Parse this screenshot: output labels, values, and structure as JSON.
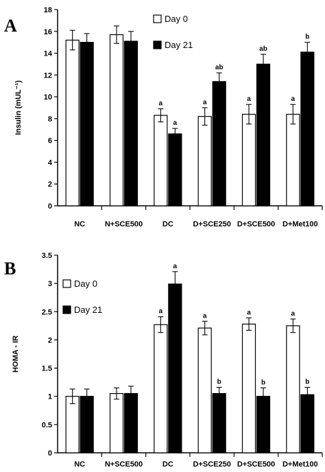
{
  "chart_data": [
    {
      "type": "bar",
      "panel": "A",
      "ylabel": "Insulin (mUL⁻¹)",
      "ylim": [
        0,
        18
      ],
      "yticks": [
        0,
        2,
        4,
        6,
        8,
        10,
        12,
        14,
        16,
        18
      ],
      "categories": [
        "NC",
        "N+SCE500",
        "DC",
        "D+SCE250",
        "D+SCE500",
        "D+Met100"
      ],
      "legend_placement": "top-center",
      "series": [
        {
          "name": "Day 0",
          "color": "#ffffff",
          "values": [
            15.2,
            15.7,
            8.3,
            8.2,
            8.4,
            8.4
          ],
          "errors": [
            0.9,
            0.8,
            0.6,
            0.8,
            0.9,
            0.9
          ],
          "labels": [
            "",
            "",
            "a",
            "a",
            "a",
            "a"
          ]
        },
        {
          "name": "Day 21",
          "color": "#000000",
          "values": [
            15.0,
            15.1,
            6.6,
            11.4,
            13.0,
            14.1
          ],
          "errors": [
            0.8,
            0.9,
            0.5,
            0.8,
            0.9,
            0.9
          ],
          "labels": [
            "",
            "",
            "a",
            "ab",
            "ab",
            "b"
          ]
        }
      ]
    },
    {
      "type": "bar",
      "panel": "B",
      "ylabel": "HOMA - IR",
      "ylim": [
        0,
        3.5
      ],
      "yticks": [
        "0",
        "0.5",
        "1",
        "1.5",
        "2",
        "2.5",
        "3",
        "3.5"
      ],
      "categories": [
        "NC",
        "N+SCE500",
        "DC",
        "D+SCE250",
        "D+SCE500",
        "D+Met100"
      ],
      "legend_placement": "top-left",
      "series": [
        {
          "name": "Day 0",
          "color": "#ffffff",
          "values": [
            1.0,
            1.05,
            2.27,
            2.21,
            2.28,
            2.25
          ],
          "errors": [
            0.13,
            0.1,
            0.14,
            0.12,
            0.11,
            0.12
          ],
          "labels": [
            "",
            "",
            "a",
            "a",
            "a",
            "a"
          ]
        },
        {
          "name": "Day 21",
          "color": "#000000",
          "values": [
            1.0,
            1.05,
            2.99,
            1.05,
            1.0,
            1.03
          ],
          "errors": [
            0.13,
            0.13,
            0.22,
            0.11,
            0.15,
            0.13
          ],
          "labels": [
            "",
            "",
            "a",
            "b",
            "b",
            "b"
          ]
        }
      ]
    }
  ]
}
